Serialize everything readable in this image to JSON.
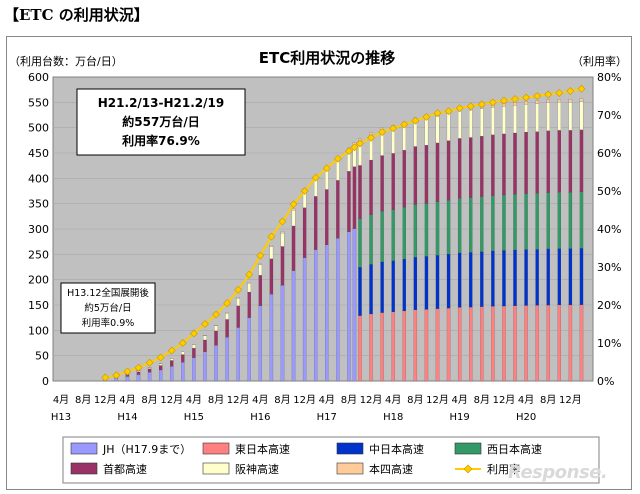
{
  "page_heading": "【ETC の利用状況】",
  "watermark_text": "Response.",
  "chart_data": {
    "type": "bar",
    "stacked": true,
    "title": "ETC利用状況の推移",
    "ylabel": "（利用台数：万台/日）",
    "y2label": "（利用率）",
    "ylim": [
      0,
      600
    ],
    "y2lim": [
      0,
      80
    ],
    "y_ticks": [
      "0",
      "50",
      "100",
      "150",
      "200",
      "250",
      "300",
      "350",
      "400",
      "450",
      "500",
      "550",
      "600"
    ],
    "y2_ticks": [
      "0%",
      "10%",
      "20%",
      "30%",
      "40%",
      "50%",
      "60%",
      "70%",
      "80%"
    ],
    "grid": true,
    "legend": "bottom",
    "x_tick_labels": [
      "4月",
      "8月",
      "12月",
      "4月",
      "8月",
      "12月",
      "4月",
      "8月",
      "12月",
      "4月",
      "8月",
      "12月",
      "4月",
      "8月",
      "12月",
      "4月",
      "8月",
      "12月",
      "4月",
      "8月",
      "12月",
      "4月",
      "8月",
      "12月"
    ],
    "x_year_labels": [
      "H13",
      "H14",
      "H15",
      "H16",
      "H17",
      "H18",
      "H19",
      "H20"
    ],
    "annotations": {
      "main": [
        "H21.2/13-H21.2/19",
        "約557万台/日",
        "利用率76.9%"
      ],
      "start": [
        "H13.12全国展開後",
        "約5万台/日",
        "利用率0.9%"
      ]
    },
    "series": [
      {
        "name": "JH（H17.9まで）",
        "color": "#9999ff"
      },
      {
        "name": "東日本高速",
        "color": "#ff8080"
      },
      {
        "name": "中日本高速",
        "color": "#0033cc"
      },
      {
        "name": "西日本高速",
        "color": "#339966"
      },
      {
        "name": "首都高速",
        "color": "#993366"
      },
      {
        "name": "阪神高速",
        "color": "#ffffcc"
      },
      {
        "name": "本四高速",
        "color": "#ffcc99"
      },
      {
        "name": "利用率",
        "color": "#ffcc00"
      }
    ],
    "months": [
      "H13-12",
      "H14-02",
      "H14-04",
      "H14-06",
      "H14-08",
      "H14-10",
      "H14-12",
      "H15-02",
      "H15-04",
      "H15-06",
      "H15-08",
      "H15-10",
      "H15-12",
      "H16-02",
      "H16-04",
      "H16-06",
      "H16-08",
      "H16-10",
      "H16-12",
      "H17-02",
      "H17-04",
      "H17-06",
      "H17-08",
      "H17-09",
      "H17-10",
      "H17-12",
      "H18-02",
      "H18-04",
      "H18-06",
      "H18-08",
      "H18-10",
      "H18-12",
      "H19-02",
      "H19-04",
      "H19-06",
      "H19-08",
      "H19-10",
      "H19-12",
      "H20-02",
      "H20-04",
      "H20-06",
      "H20-08",
      "H20-10",
      "H20-12",
      "H21-02"
    ],
    "total_values": [
      5,
      9,
      14,
      20,
      27,
      34,
      45,
      58,
      72,
      90,
      110,
      135,
      165,
      195,
      232,
      268,
      295,
      340,
      380,
      405,
      420,
      440,
      460,
      470,
      478,
      490,
      500,
      505,
      512,
      520,
      523,
      528,
      533,
      538,
      540,
      543,
      546,
      548,
      550,
      552,
      553,
      555,
      556,
      556,
      557
    ],
    "usage_rate_pct": [
      0.9,
      1.5,
      2.5,
      3.5,
      4.8,
      6.2,
      8.0,
      10.0,
      12.5,
      15.0,
      17.5,
      20.5,
      24.0,
      28.0,
      33.0,
      38.0,
      42.0,
      46.5,
      50.0,
      53.5,
      56.0,
      58.5,
      60.5,
      61.5,
      62.5,
      64.0,
      65.5,
      66.5,
      67.5,
      68.5,
      69.5,
      70.5,
      71.0,
      71.8,
      72.3,
      72.8,
      73.3,
      73.8,
      74.2,
      74.6,
      75.0,
      75.4,
      75.8,
      76.3,
      76.9
    ]
  }
}
